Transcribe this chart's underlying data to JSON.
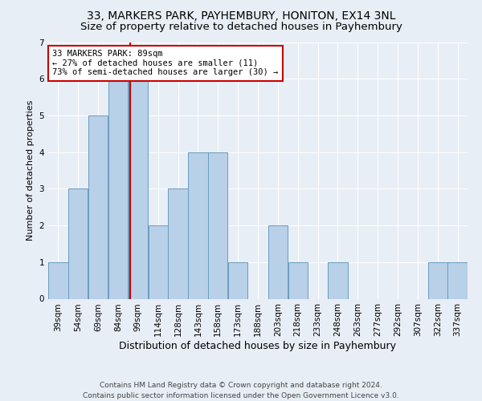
{
  "title1": "33, MARKERS PARK, PAYHEMBURY, HONITON, EX14 3NL",
  "title2": "Size of property relative to detached houses in Payhembury",
  "xlabel": "Distribution of detached houses by size in Payhembury",
  "ylabel": "Number of detached properties",
  "categories": [
    "39sqm",
    "54sqm",
    "69sqm",
    "84sqm",
    "99sqm",
    "114sqm",
    "128sqm",
    "143sqm",
    "158sqm",
    "173sqm",
    "188sqm",
    "203sqm",
    "218sqm",
    "233sqm",
    "248sqm",
    "263sqm",
    "277sqm",
    "292sqm",
    "307sqm",
    "322sqm",
    "337sqm"
  ],
  "values": [
    1,
    3,
    5,
    6,
    6,
    2,
    3,
    4,
    4,
    1,
    0,
    2,
    1,
    0,
    1,
    0,
    0,
    0,
    0,
    1,
    1
  ],
  "bar_color": "#b8d0e8",
  "bar_edge_color": "#6a9ec0",
  "vline_x_index": 3.6,
  "vline_color": "#cc0000",
  "annotation_text": "33 MARKERS PARK: 89sqm\n← 27% of detached houses are smaller (11)\n73% of semi-detached houses are larger (30) →",
  "annotation_box_color": "#ffffff",
  "annotation_box_edge_color": "#cc0000",
  "ylim": [
    0,
    7
  ],
  "yticks": [
    0,
    1,
    2,
    3,
    4,
    5,
    6,
    7
  ],
  "footer1": "Contains HM Land Registry data © Crown copyright and database right 2024.",
  "footer2": "Contains public sector information licensed under the Open Government Licence v3.0.",
  "background_color": "#e8eef5",
  "plot_background_color": "#e8eef5",
  "grid_color": "#ffffff",
  "title1_fontsize": 10,
  "title2_fontsize": 9.5,
  "xlabel_fontsize": 9,
  "ylabel_fontsize": 8,
  "tick_fontsize": 7.5,
  "footer_fontsize": 6.5,
  "annotation_fontsize": 7.5
}
